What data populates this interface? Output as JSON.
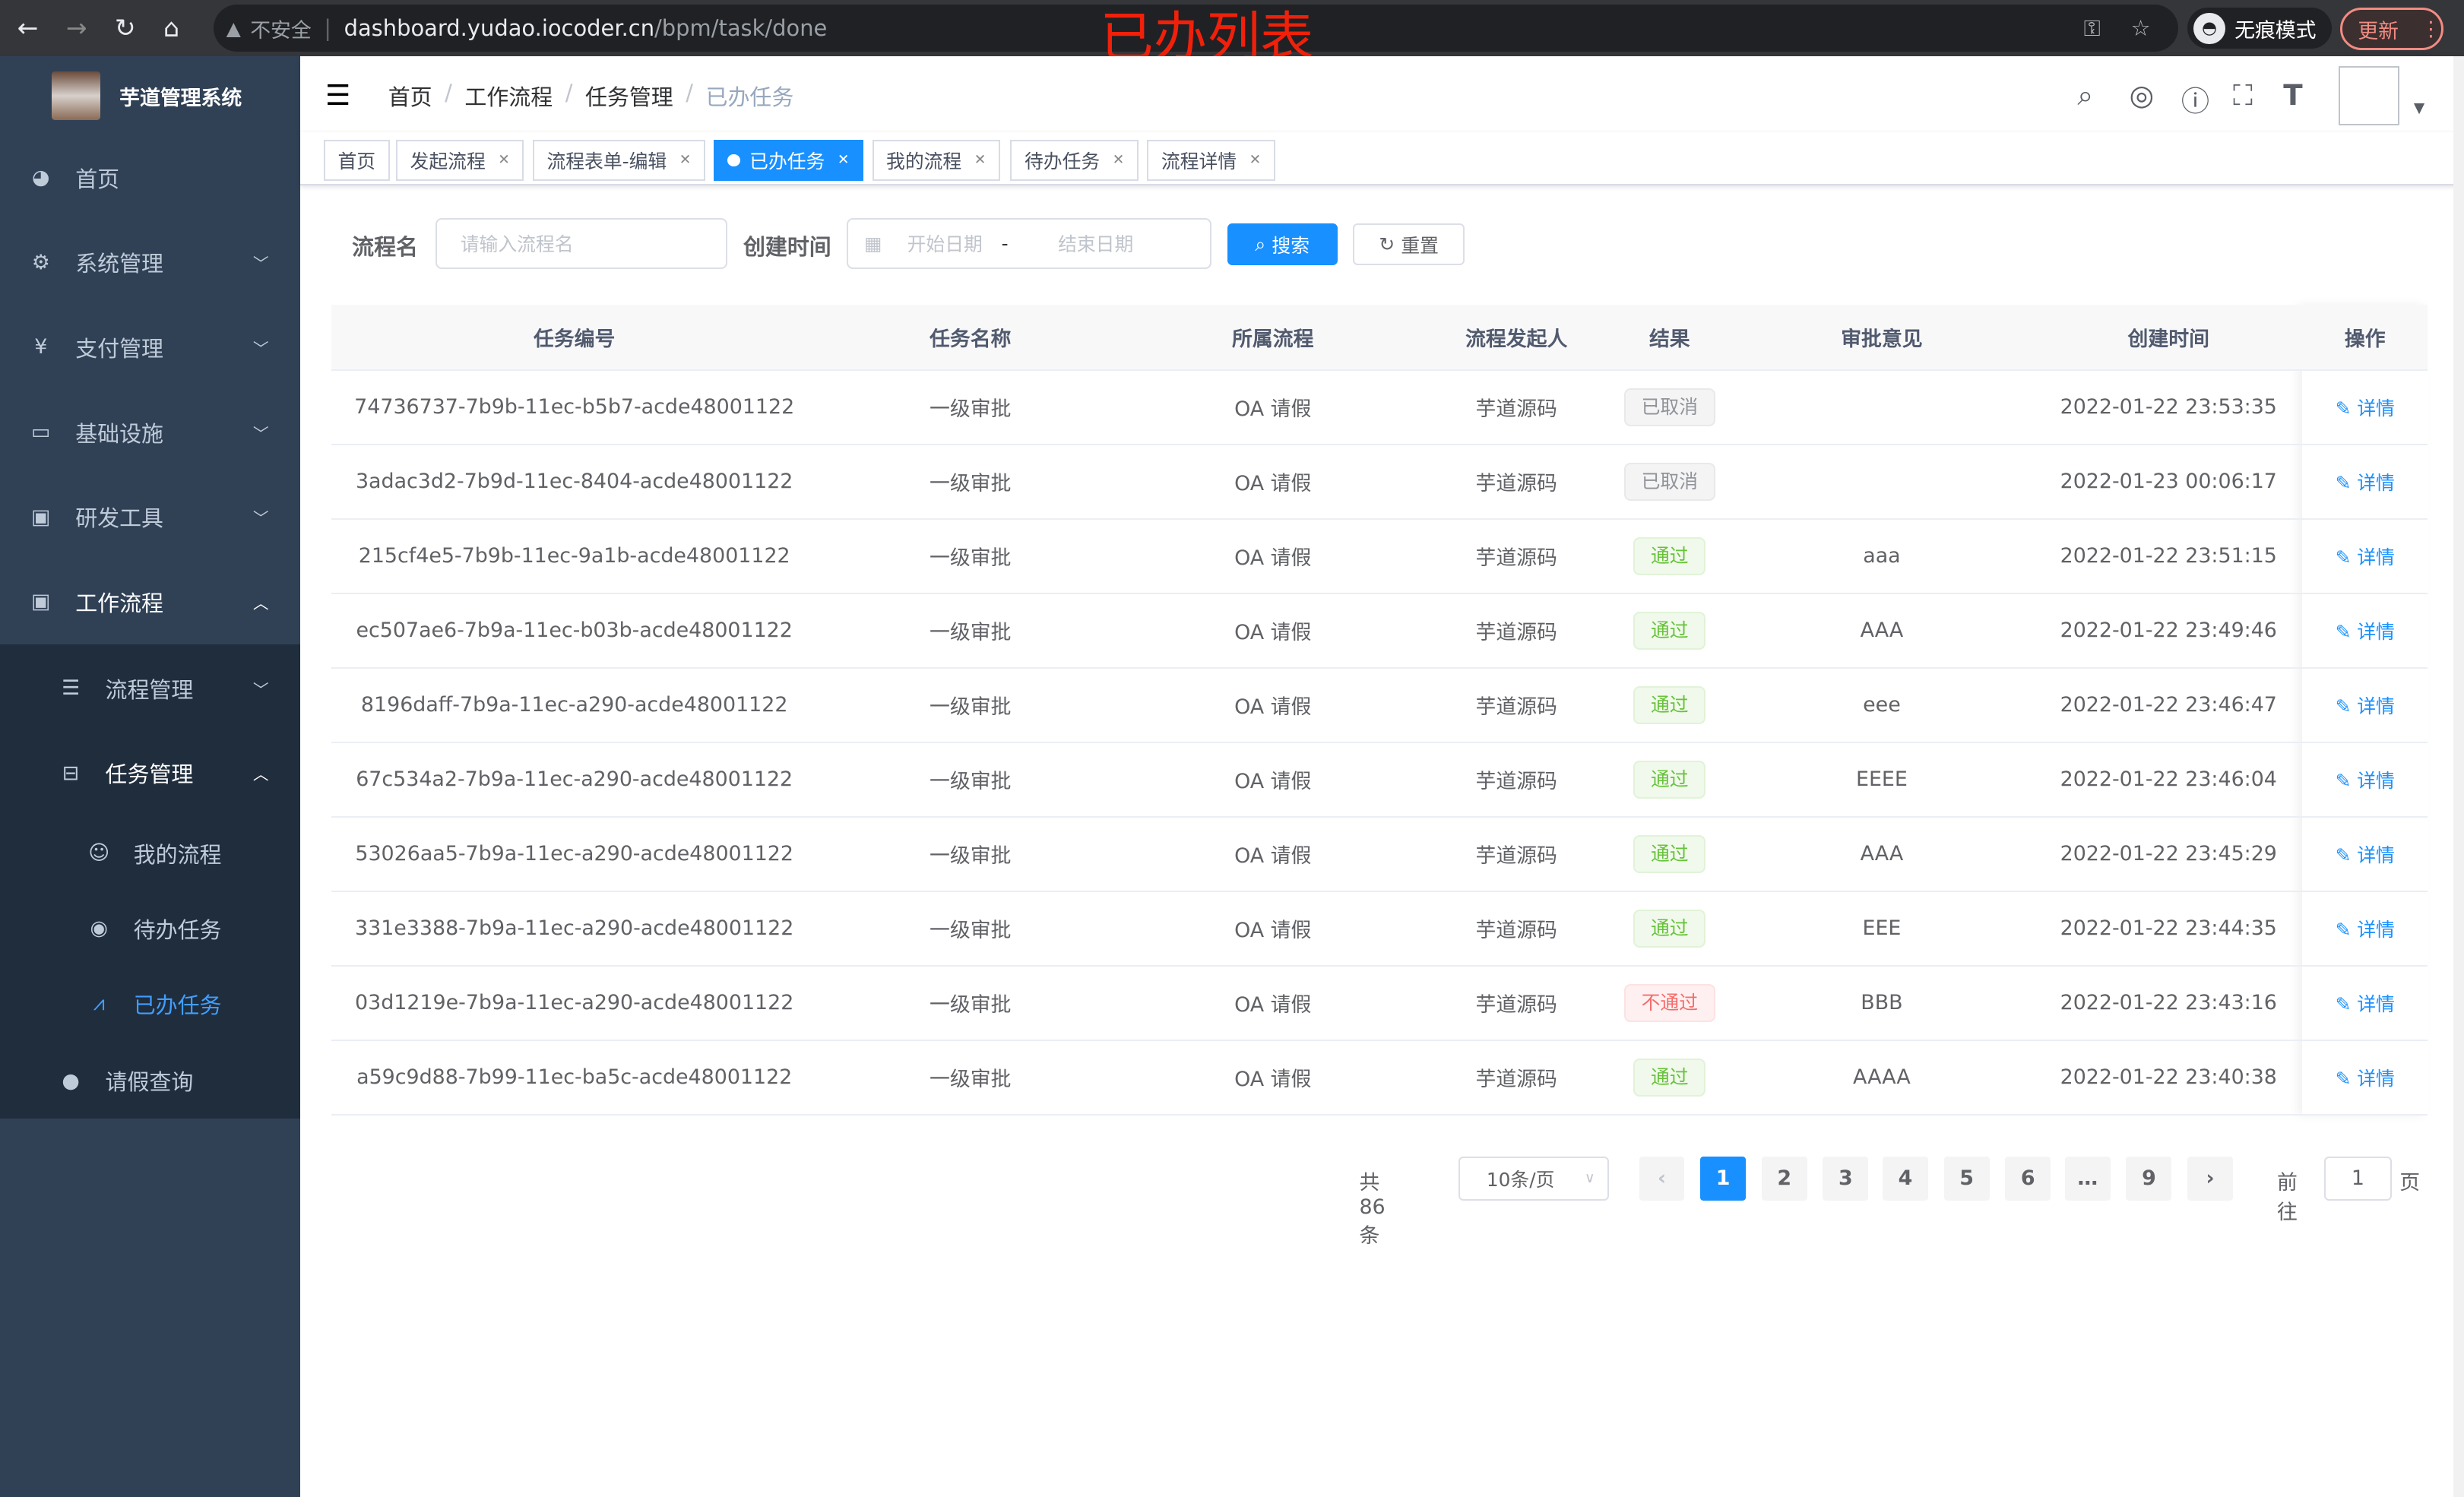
{
  "browser": {
    "not_secure": "不安全",
    "url_host": "dashboard.yudao.iocoder.cn",
    "url_path": "/bpm/task/done",
    "incognito": "无痕模式",
    "update": "更新"
  },
  "annotation": "已办列表",
  "sidebar": {
    "title": "芋道管理系统",
    "items": [
      {
        "label": "首页",
        "icon": "dashboard-icon"
      },
      {
        "label": "系统管理",
        "icon": "gear-icon"
      },
      {
        "label": "支付管理",
        "icon": "yen-icon"
      },
      {
        "label": "基础设施",
        "icon": "monitor-icon"
      },
      {
        "label": "研发工具",
        "icon": "toolbox-icon"
      },
      {
        "label": "工作流程",
        "icon": "toolbox-icon"
      },
      {
        "label": "流程管理",
        "icon": "tree-icon"
      },
      {
        "label": "任务管理",
        "icon": "tree-icon"
      },
      {
        "label": "我的流程",
        "icon": "people-icon"
      },
      {
        "label": "待办任务",
        "icon": "eye-icon"
      },
      {
        "label": "已办任务",
        "icon": "finish-icon"
      },
      {
        "label": "请假查询",
        "icon": "user-icon"
      }
    ]
  },
  "breadcrumb": [
    "首页",
    "工作流程",
    "任务管理",
    "已办任务"
  ],
  "tags": [
    {
      "label": "首页"
    },
    {
      "label": "发起流程"
    },
    {
      "label": "流程表单-编辑"
    },
    {
      "label": "已办任务",
      "active": true
    },
    {
      "label": "我的流程"
    },
    {
      "label": "待办任务"
    },
    {
      "label": "流程详情"
    }
  ],
  "filter": {
    "name_label": "流程名",
    "name_placeholder": "请输入流程名",
    "time_label": "创建时间",
    "start_placeholder": "开始日期",
    "range_sep": "-",
    "end_placeholder": "结束日期",
    "search": "搜索",
    "reset": "重置"
  },
  "table": {
    "headers": [
      "任务编号",
      "任务名称",
      "所属流程",
      "流程发起人",
      "结果",
      "审批意见",
      "创建时间",
      "操作"
    ],
    "detail_label": "详情",
    "rows": [
      {
        "id": "74736737-7b9b-11ec-b5b7-acde48001122",
        "name": "一级审批",
        "flow": "OA 请假",
        "initiator": "芋道源码",
        "result": "已取消",
        "status": "gray",
        "comment": "",
        "time": "2022-01-22 23:53:35"
      },
      {
        "id": "3adac3d2-7b9d-11ec-8404-acde48001122",
        "name": "一级审批",
        "flow": "OA 请假",
        "initiator": "芋道源码",
        "result": "已取消",
        "status": "gray",
        "comment": "",
        "time": "2022-01-23 00:06:17"
      },
      {
        "id": "215cf4e5-7b9b-11ec-9a1b-acde48001122",
        "name": "一级审批",
        "flow": "OA 请假",
        "initiator": "芋道源码",
        "result": "通过",
        "status": "green",
        "comment": "aaa",
        "time": "2022-01-22 23:51:15"
      },
      {
        "id": "ec507ae6-7b9a-11ec-b03b-acde48001122",
        "name": "一级审批",
        "flow": "OA 请假",
        "initiator": "芋道源码",
        "result": "通过",
        "status": "green",
        "comment": "AAA",
        "time": "2022-01-22 23:49:46"
      },
      {
        "id": "8196daff-7b9a-11ec-a290-acde48001122",
        "name": "一级审批",
        "flow": "OA 请假",
        "initiator": "芋道源码",
        "result": "通过",
        "status": "green",
        "comment": "eee",
        "time": "2022-01-22 23:46:47"
      },
      {
        "id": "67c534a2-7b9a-11ec-a290-acde48001122",
        "name": "一级审批",
        "flow": "OA 请假",
        "initiator": "芋道源码",
        "result": "通过",
        "status": "green",
        "comment": "EEEE",
        "time": "2022-01-22 23:46:04"
      },
      {
        "id": "53026aa5-7b9a-11ec-a290-acde48001122",
        "name": "一级审批",
        "flow": "OA 请假",
        "initiator": "芋道源码",
        "result": "通过",
        "status": "green",
        "comment": "AAA",
        "time": "2022-01-22 23:45:29"
      },
      {
        "id": "331e3388-7b9a-11ec-a290-acde48001122",
        "name": "一级审批",
        "flow": "OA 请假",
        "initiator": "芋道源码",
        "result": "通过",
        "status": "green",
        "comment": "EEE",
        "time": "2022-01-22 23:44:35"
      },
      {
        "id": "03d1219e-7b9a-11ec-a290-acde48001122",
        "name": "一级审批",
        "flow": "OA 请假",
        "initiator": "芋道源码",
        "result": "不通过",
        "status": "red",
        "comment": "BBB",
        "time": "2022-01-22 23:43:16"
      },
      {
        "id": "a59c9d88-7b99-11ec-ba5c-acde48001122",
        "name": "一级审批",
        "flow": "OA 请假",
        "initiator": "芋道源码",
        "result": "通过",
        "status": "green",
        "comment": "AAAA",
        "time": "2022-01-22 23:40:38"
      }
    ]
  },
  "pagination": {
    "total": "共 86 条",
    "page_size": "10条/页",
    "pages": [
      "1",
      "2",
      "3",
      "4",
      "5",
      "6",
      "…",
      "9"
    ],
    "current": "1",
    "goto_label": "前往",
    "goto_value": "1",
    "page_suffix": "页"
  },
  "colors": {
    "primary": "#1890ff",
    "sidebar": "#304156",
    "annotation": "#f0200a"
  }
}
